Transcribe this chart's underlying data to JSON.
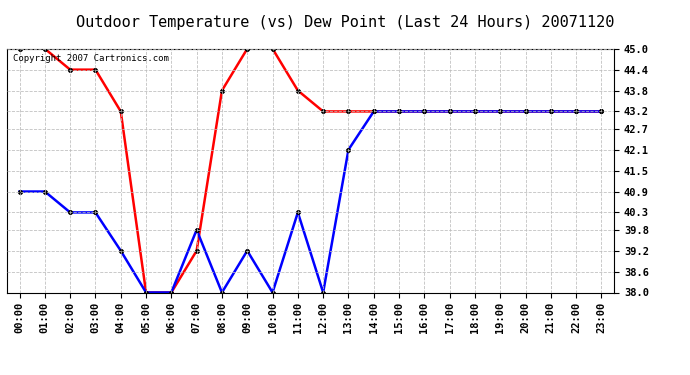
{
  "title": "Outdoor Temperature (vs) Dew Point (Last 24 Hours) 20071120",
  "copyright_text": "Copyright 2007 Cartronics.com",
  "x_labels": [
    "00:00",
    "01:00",
    "02:00",
    "03:00",
    "04:00",
    "05:00",
    "06:00",
    "07:00",
    "08:00",
    "09:00",
    "10:00",
    "11:00",
    "12:00",
    "13:00",
    "14:00",
    "15:00",
    "16:00",
    "17:00",
    "18:00",
    "19:00",
    "20:00",
    "21:00",
    "22:00",
    "23:00"
  ],
  "red_data": [
    45.0,
    45.0,
    44.4,
    44.4,
    43.2,
    38.0,
    38.0,
    39.2,
    43.8,
    45.0,
    45.0,
    43.8,
    43.2,
    43.2,
    43.2,
    43.2,
    43.2,
    43.2,
    43.2,
    43.2,
    43.2,
    43.2,
    43.2,
    43.2
  ],
  "blue_data": [
    40.9,
    40.9,
    40.3,
    40.3,
    39.2,
    38.0,
    38.0,
    39.8,
    38.0,
    39.2,
    38.0,
    40.3,
    38.0,
    42.1,
    43.2,
    43.2,
    43.2,
    43.2,
    43.2,
    43.2,
    43.2,
    43.2,
    43.2,
    43.2
  ],
  "red_color": "#FF0000",
  "blue_color": "#0000FF",
  "bg_color": "#FFFFFF",
  "plot_bg_color": "#FFFFFF",
  "grid_color": "#BBBBBB",
  "y_min": 38.0,
  "y_max": 45.0,
  "y_ticks": [
    38.0,
    38.6,
    39.2,
    39.8,
    40.3,
    40.9,
    41.5,
    42.1,
    42.7,
    43.2,
    43.8,
    44.4,
    45.0
  ],
  "title_fontsize": 11,
  "tick_fontsize": 7.5,
  "copyright_fontsize": 6.5,
  "line_width": 1.8,
  "marker": "o",
  "marker_size": 3
}
